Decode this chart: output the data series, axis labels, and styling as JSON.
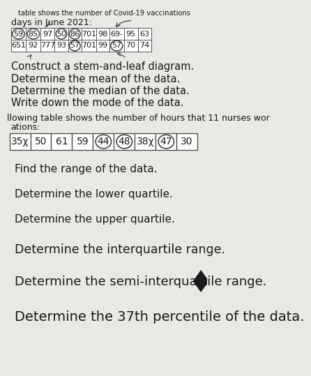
{
  "bg_color": "#e8e8e4",
  "title_line1": "table shows the number of Covid-19 vaccinations",
  "title_line2": "days in June 2021:",
  "table1_rows": [
    [
      "59",
      "85",
      "97",
      "50",
      "86",
      "701",
      "98",
      "69-",
      "95",
      "63"
    ],
    [
      "651",
      "92",
      "777",
      "93",
      "57",
      "701",
      "99",
      "57",
      "70",
      "74"
    ]
  ],
  "table1_circled": [
    [
      0,
      0
    ],
    [
      0,
      1
    ],
    [
      0,
      3
    ],
    [
      0,
      4
    ],
    [
      1,
      4
    ],
    [
      1,
      7
    ]
  ],
  "questions_part1": [
    "Construct a stem-and-leaf diagram.",
    "Determine the mean of the data.",
    "Determine the median of the data.",
    "Write down the mode of the data."
  ],
  "nurses_intro": "llowing table shows the number of hours that 11 nurses wor",
  "nurses_sub": "ations:",
  "table2_values": [
    "35χ",
    "50",
    "61",
    "59",
    "44",
    "48",
    "38χ",
    "47",
    "30"
  ],
  "table2_circled": [
    4,
    5,
    7
  ],
  "questions_part2": [
    "Find the range of the data.",
    "Determine the lower quartile.",
    "Determine the upper quartile.",
    "Determine the interquartile range.",
    "Determine the semi-interquartile range.",
    "Determine the 37th percentile of the data."
  ],
  "text_color": "#1a1a1a",
  "font_size_q1": 10.5,
  "font_size_q2_small": 11,
  "font_size_q2_large": 13
}
